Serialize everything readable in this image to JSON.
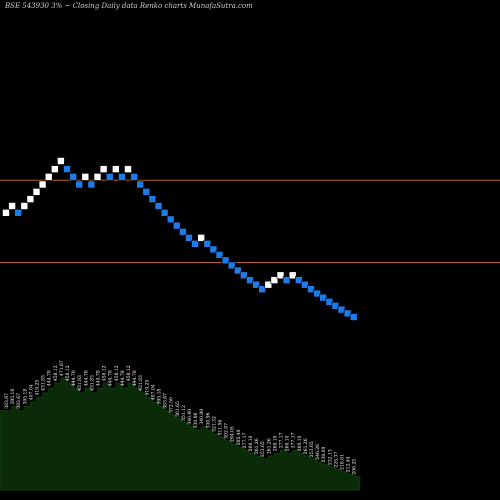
{
  "chart_data": {
    "type": "renko",
    "symbol": "BSE 543930",
    "box_size": "3%",
    "title_suffix": "~  Closing Daily data  Renko  charts MunafaSutra.com",
    "up_color": "#ffffff",
    "down_color": "#1e7ae6",
    "reference_line_color": "#b8621b",
    "price_area_fill": "#0a2a08",
    "price_area_line": "#0e3a0c",
    "bricks": [
      {
        "dir": "up",
        "price": 383.67
      },
      {
        "dir": "up",
        "price": 395.18
      },
      {
        "dir": "down",
        "price": 383.67
      },
      {
        "dir": "up",
        "price": 395.18
      },
      {
        "dir": "up",
        "price": 407.04
      },
      {
        "dir": "up",
        "price": 419.25
      },
      {
        "dir": "up",
        "price": 431.83
      },
      {
        "dir": "up",
        "price": 444.78
      },
      {
        "dir": "up",
        "price": 458.12
      },
      {
        "dir": "up",
        "price": 471.87
      },
      {
        "dir": "down",
        "price": 458.12
      },
      {
        "dir": "down",
        "price": 444.78
      },
      {
        "dir": "down",
        "price": 431.83
      },
      {
        "dir": "up",
        "price": 444.78
      },
      {
        "dir": "down",
        "price": 431.83
      },
      {
        "dir": "up",
        "price": 444.78
      },
      {
        "dir": "up",
        "price": 458.12
      },
      {
        "dir": "down",
        "price": 444.78
      },
      {
        "dir": "up",
        "price": 458.12
      },
      {
        "dir": "down",
        "price": 444.78
      },
      {
        "dir": "up",
        "price": 458.12
      },
      {
        "dir": "down",
        "price": 444.78
      },
      {
        "dir": "down",
        "price": 431.83
      },
      {
        "dir": "down",
        "price": 419.25
      },
      {
        "dir": "down",
        "price": 407.04
      },
      {
        "dir": "down",
        "price": 395.18
      },
      {
        "dir": "down",
        "price": 383.67
      },
      {
        "dir": "down",
        "price": 372.5
      },
      {
        "dir": "down",
        "price": 361.65
      },
      {
        "dir": "down",
        "price": 351.12
      },
      {
        "dir": "down",
        "price": 340.89
      },
      {
        "dir": "down",
        "price": 330.96
      },
      {
        "dir": "up",
        "price": 340.89
      },
      {
        "dir": "down",
        "price": 330.96
      },
      {
        "dir": "down",
        "price": 321.32
      },
      {
        "dir": "down",
        "price": 311.96
      },
      {
        "dir": "down",
        "price": 302.87
      },
      {
        "dir": "down",
        "price": 294.05
      },
      {
        "dir": "down",
        "price": 285.49
      },
      {
        "dir": "down",
        "price": 277.17
      },
      {
        "dir": "down",
        "price": 269.1
      },
      {
        "dir": "down",
        "price": 261.26
      },
      {
        "dir": "down",
        "price": 253.65
      },
      {
        "dir": "up",
        "price": 261.26
      },
      {
        "dir": "up",
        "price": 269.1
      },
      {
        "dir": "up",
        "price": 277.17
      },
      {
        "dir": "down",
        "price": 269.1
      },
      {
        "dir": "up",
        "price": 277.17
      },
      {
        "dir": "down",
        "price": 269.1
      },
      {
        "dir": "down",
        "price": 261.26
      },
      {
        "dir": "down",
        "price": 253.65
      },
      {
        "dir": "down",
        "price": 246.26
      },
      {
        "dir": "down",
        "price": 239.09
      },
      {
        "dir": "down",
        "price": 232.13
      },
      {
        "dir": "down",
        "price": 225.37
      },
      {
        "dir": "down",
        "price": 218.81
      },
      {
        "dir": "down",
        "price": 212.44
      },
      {
        "dir": "down",
        "price": 206.25
      }
    ],
    "reference_lines": [
      440.0,
      300.0
    ],
    "brick_labels": [
      "383.67",
      "395.18",
      "383.67",
      "395.18",
      "407.04",
      "419.25",
      "431.83",
      "444.78",
      "458.12",
      "471.87",
      "458.12",
      "444.78",
      "431.83",
      "444.78",
      "431.83",
      "444.78",
      "458.12",
      "444.78",
      "458.12",
      "444.78",
      "458.12",
      "444.78",
      "431.83",
      "419.25",
      "407.04",
      "395.18",
      "383.67",
      "372.50",
      "361.65",
      "351.12",
      "340.89",
      "330.96",
      "340.89",
      "330.96",
      "321.32",
      "311.96",
      "302.87",
      "294.05",
      "285.49",
      "277.17",
      "269.10",
      "261.26",
      "253.65",
      "261.26",
      "269.10",
      "277.17",
      "269.10",
      "277.17",
      "269.10",
      "261.26",
      "253.65",
      "246.26",
      "239.09",
      "232.13",
      "225.37",
      "218.81",
      "212.44",
      "206.25"
    ]
  }
}
